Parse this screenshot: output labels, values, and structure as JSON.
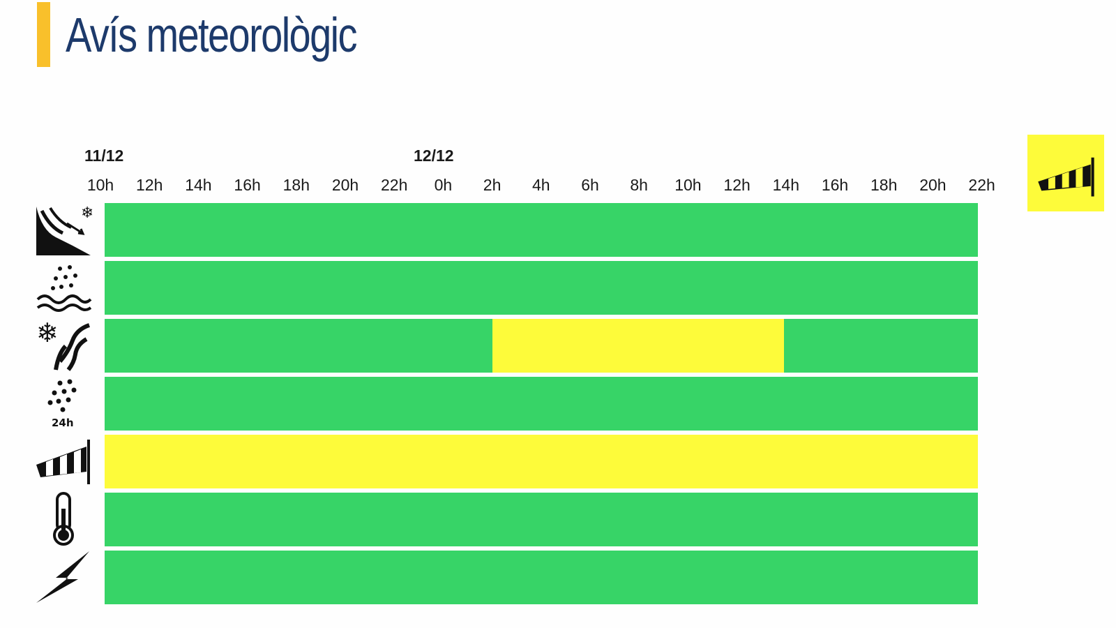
{
  "page": {
    "title": "Avís meteorològic"
  },
  "colors": {
    "accent": "#f9c02b",
    "no_warning": "#37d467",
    "yellow_warning": "#fdfb3a",
    "title": "#1d3a6b"
  },
  "chart_data": {
    "type": "heatmap",
    "title": "Avís meteorològic",
    "date_labels": [
      {
        "label": "11/12",
        "at_hour_index": 0
      },
      {
        "label": "12/12",
        "at_hour_index": 7
      }
    ],
    "hour_labels": [
      "10h",
      "12h",
      "14h",
      "16h",
      "18h",
      "20h",
      "22h",
      "0h",
      "2h",
      "4h",
      "6h",
      "8h",
      "10h",
      "12h",
      "14h",
      "16h",
      "18h",
      "20h",
      "22h"
    ],
    "x_range_hours": [
      0,
      36
    ],
    "levels": {
      "green": "no warning",
      "yellow": "yellow warning"
    },
    "rows": [
      {
        "icon": "avalanche-icon",
        "segments": [
          {
            "from": 0,
            "to": 36,
            "level": "green"
          }
        ]
      },
      {
        "icon": "coastal-rain-icon",
        "segments": [
          {
            "from": 0,
            "to": 36,
            "level": "green"
          }
        ]
      },
      {
        "icon": "snow-icon",
        "segments": [
          {
            "from": 0,
            "to": 16,
            "level": "green"
          },
          {
            "from": 16,
            "to": 28,
            "level": "yellow"
          },
          {
            "from": 28,
            "to": 36,
            "level": "green"
          }
        ]
      },
      {
        "icon": "rain-24h-icon",
        "icon_text": "24h",
        "segments": [
          {
            "from": 0,
            "to": 36,
            "level": "green"
          }
        ]
      },
      {
        "icon": "windsock-icon",
        "segments": [
          {
            "from": 0,
            "to": 36,
            "level": "yellow"
          }
        ]
      },
      {
        "icon": "thermometer-icon",
        "segments": [
          {
            "from": 0,
            "to": 36,
            "level": "green"
          }
        ]
      },
      {
        "icon": "lightning-icon",
        "segments": [
          {
            "from": 0,
            "to": 36,
            "level": "green"
          }
        ]
      }
    ],
    "badge": {
      "icon": "windsock-icon",
      "level": "yellow"
    }
  }
}
